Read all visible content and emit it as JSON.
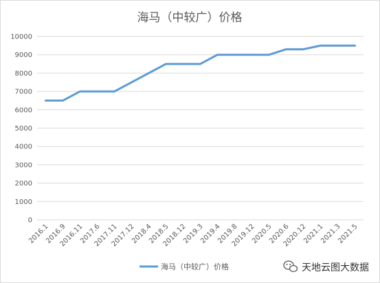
{
  "chart_data": {
    "type": "line",
    "title": "海马（中较广）价格",
    "x": [
      "2016.1",
      "2016.9",
      "2016.11",
      "2017.6",
      "2017.11",
      "2017.12",
      "2018.4",
      "2018.5",
      "2018.12",
      "2019.3",
      "2019.4",
      "2019.8",
      "2019.12",
      "2020.5",
      "2020.6",
      "2020.12",
      "2021.1",
      "2021.3",
      "2021.5"
    ],
    "series": [
      {
        "name": "海马（中较广）价格",
        "values": [
          6500,
          6500,
          7000,
          7000,
          7000,
          7500,
          8000,
          8500,
          8500,
          8500,
          9000,
          9000,
          9000,
          9000,
          9300,
          9300,
          9500,
          9500,
          9500
        ],
        "color": "#5b9bd5"
      }
    ],
    "ylim": [
      0,
      10000
    ],
    "yticks": [
      "0",
      "1000",
      "2000",
      "3000",
      "4000",
      "5000",
      "6000",
      "7000",
      "8000",
      "9000",
      "10000"
    ],
    "grid": true,
    "legend": "bottom"
  },
  "watermark": {
    "text": "天地云图大数据",
    "icon": "wechat-icon"
  }
}
